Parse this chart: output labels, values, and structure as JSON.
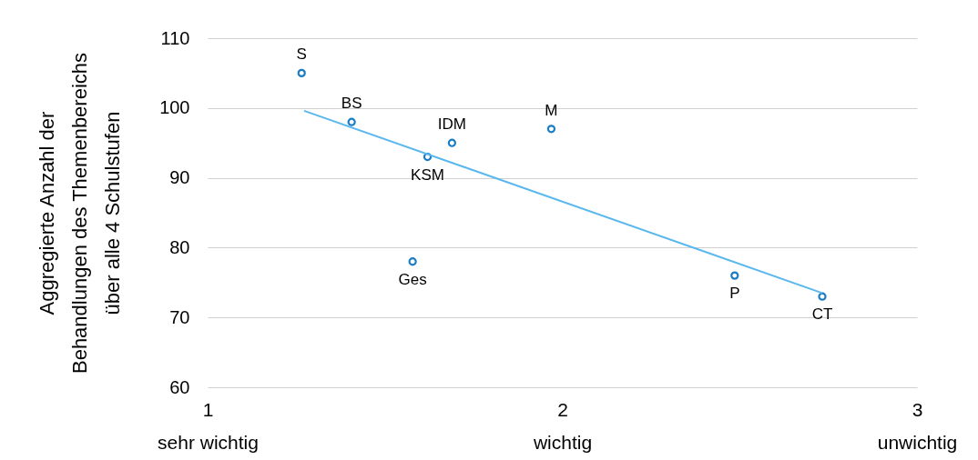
{
  "chart_data": {
    "type": "scatter",
    "ylabel": "Aggregierte Anzahl der\nBehandlungen des Themenbereichs\nüber alle 4 Schulstufen",
    "xlim": [
      1,
      3
    ],
    "xticks": [
      {
        "value": 1,
        "label": "1\nsehr wichtig"
      },
      {
        "value": 2,
        "label": "2\nwichtig"
      },
      {
        "value": 3,
        "label": "3\nunwichtig"
      }
    ],
    "ylim": [
      60,
      110
    ],
    "yticks": [
      60,
      70,
      80,
      90,
      100,
      110
    ],
    "grid": "y",
    "marker": "circle",
    "series": [
      {
        "color": "#1a7dc4",
        "x": [
          1.265,
          1.406,
          1.689,
          1.62,
          1.969,
          1.578,
          2.486,
          2.733
        ],
        "values": [
          105,
          98,
          95,
          93,
          97,
          78,
          76,
          73
        ]
      },
      {
        "type": "line",
        "marker": "none",
        "color": "#5ab8ee",
        "x": [
          1.272,
          2.733
        ],
        "values": [
          99.6,
          73.5
        ]
      }
    ],
    "annotations": [
      {
        "text": "S",
        "x": 1.265,
        "y": 105
      },
      {
        "text": "BS",
        "x": 1.406,
        "y": 98
      },
      {
        "text": "IDM",
        "x": 1.689,
        "y": 95
      },
      {
        "text": "KSM",
        "x": 1.62,
        "y": 93
      },
      {
        "text": "M",
        "x": 1.969,
        "y": 97
      },
      {
        "text": "Ges",
        "x": 1.578,
        "y": 78
      },
      {
        "text": "P",
        "x": 2.486,
        "y": 76
      },
      {
        "text": "CT",
        "x": 2.733,
        "y": 73
      }
    ]
  }
}
